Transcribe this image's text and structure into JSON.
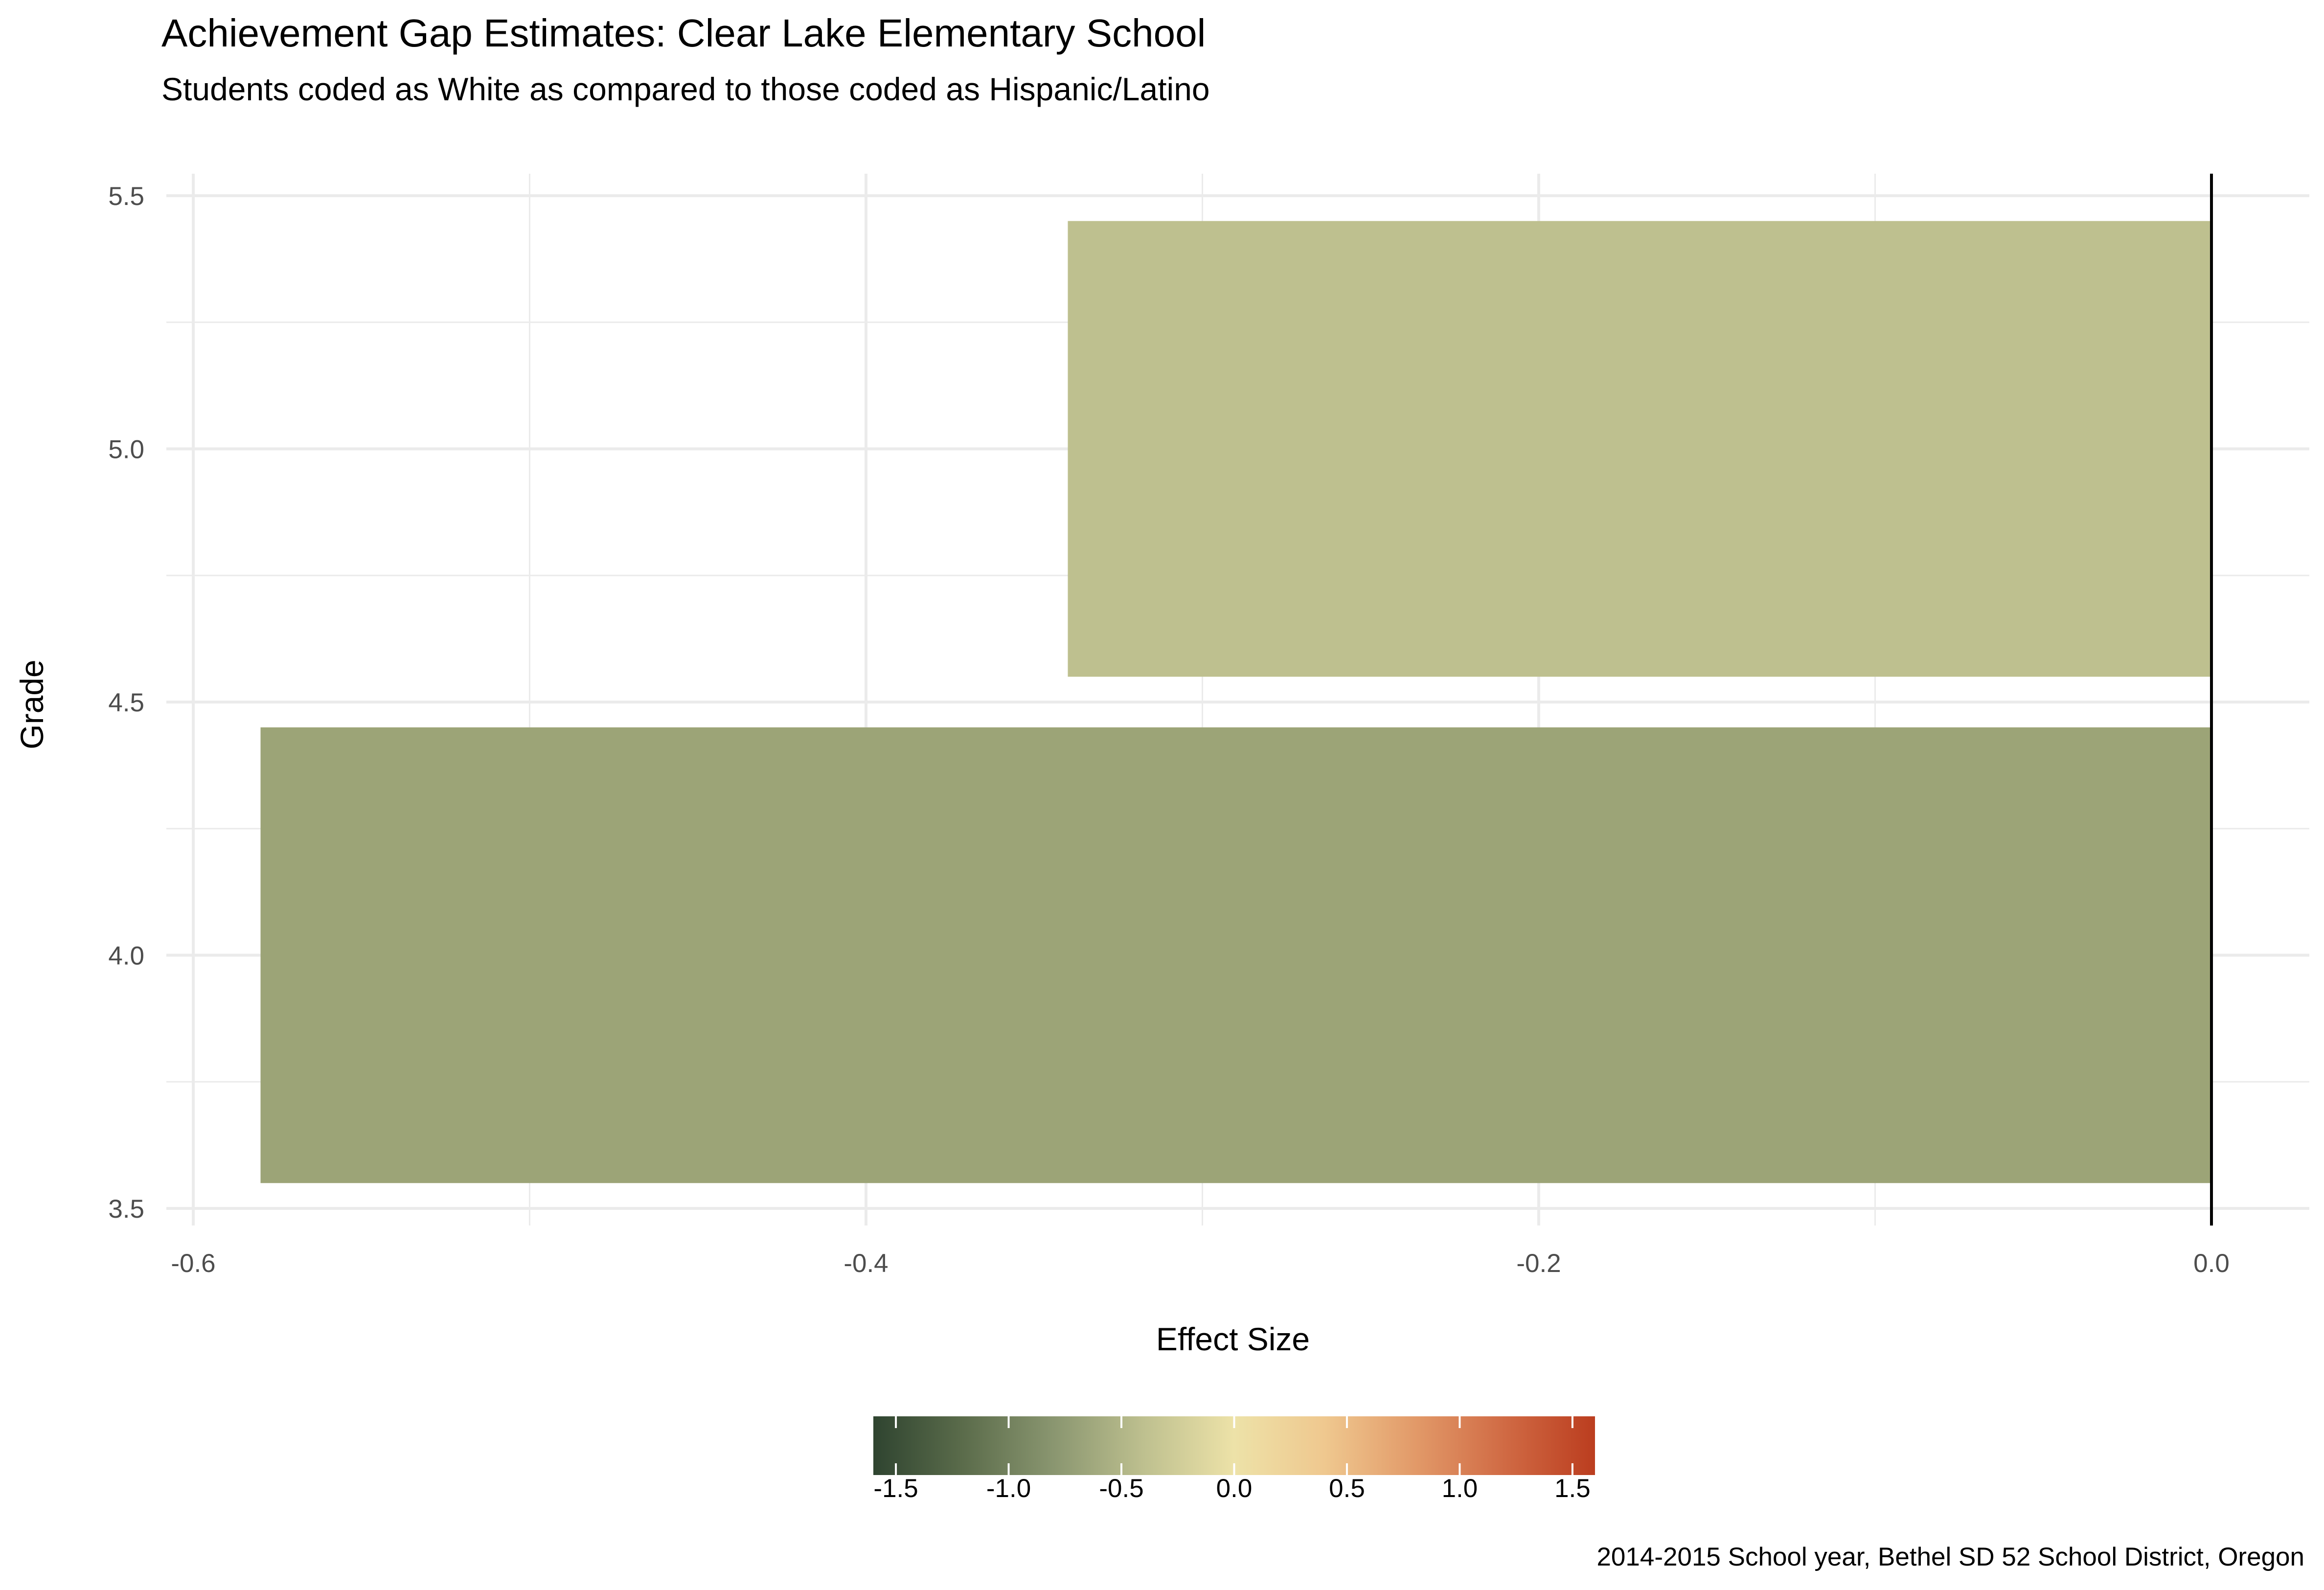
{
  "chart_data": {
    "type": "bar",
    "orientation": "horizontal",
    "title": "Achievement Gap Estimates: Clear Lake Elementary School",
    "subtitle": "Students coded as White as compared to those coded as Hispanic/Latino",
    "xlabel": "Effect Size",
    "ylabel": "Grade",
    "caption": "2014-2015 School year, Bethel SD 52 School District, Oregon",
    "categories": [
      4,
      5
    ],
    "values": [
      -0.58,
      -0.34
    ],
    "bar_colors": [
      "#9ca477",
      "#bec08f"
    ],
    "xlim": [
      -0.6,
      0.0
    ],
    "ylim": [
      3.5,
      5.5
    ],
    "x_ticks": [
      "-0.6",
      "-0.4",
      "-0.2",
      "0.0"
    ],
    "y_ticks": [
      "3.5",
      "4.0",
      "4.5",
      "5.0",
      "5.5"
    ],
    "grid": true,
    "reference_line_x": 0.0,
    "legend": {
      "placement": "bottom",
      "type": "colorbar",
      "range": [
        -1.6,
        1.6
      ],
      "ticks": [
        "-1.5",
        "-1.0",
        "-0.5",
        "0.0",
        "0.5",
        "1.0",
        "1.5"
      ],
      "colors": [
        "#2f4430",
        "#5b6c4b",
        "#8a9670",
        "#bec08f",
        "#ede2a8",
        "#efc88f",
        "#e29a69",
        "#d06a44",
        "#bb3d1f"
      ]
    }
  }
}
